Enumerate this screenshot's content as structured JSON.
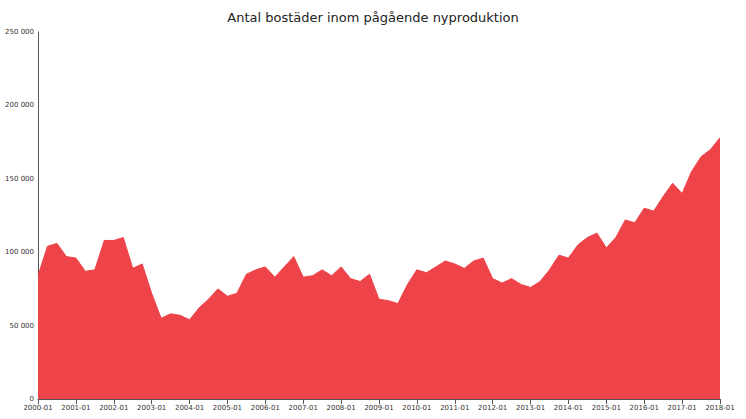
{
  "chart_data": {
    "type": "area",
    "title": "Antal bostäder inom pågående nyproduktion",
    "categories": [
      "2000-01",
      null,
      null,
      null,
      "2001-01",
      null,
      null,
      null,
      "2002-01",
      null,
      null,
      null,
      "2003-01",
      null,
      null,
      null,
      "2004-01",
      null,
      null,
      null,
      "2005-01",
      null,
      null,
      null,
      "2006-01",
      null,
      null,
      null,
      "2007-01",
      null,
      null,
      null,
      "2008-01",
      null,
      null,
      null,
      "2009-01",
      null,
      null,
      null,
      "2010-01",
      null,
      null,
      null,
      "2011-01",
      null,
      null,
      null,
      "2012-01",
      null,
      null,
      null,
      "2013-01",
      null,
      null,
      null,
      "2014-01",
      null,
      null,
      null,
      "2015-01",
      null,
      null,
      null,
      "2016-01",
      null,
      null,
      null,
      "2017-01",
      null,
      null,
      null,
      "2018-01"
    ],
    "values": [
      84000,
      104000,
      106000,
      97000,
      96000,
      87000,
      88000,
      108000,
      108000,
      110000,
      89000,
      92000,
      72000,
      55000,
      58000,
      57000,
      54000,
      62000,
      68000,
      75000,
      70000,
      72000,
      85000,
      88000,
      90000,
      83000,
      90000,
      97000,
      83000,
      84000,
      88000,
      84000,
      90000,
      82000,
      80000,
      85000,
      68000,
      67000,
      65000,
      78000,
      88000,
      86000,
      90000,
      94000,
      92000,
      89000,
      94000,
      96000,
      82000,
      79000,
      82000,
      78000,
      76000,
      80000,
      88000,
      98000,
      96000,
      105000,
      110000,
      113000,
      103000,
      110000,
      122000,
      120000,
      130000,
      128000,
      138000,
      147000,
      140000,
      155000,
      165000,
      170000,
      178000
    ],
    "color": "#ee4449",
    "ylim": [
      0,
      250000
    ],
    "yticks": [
      0,
      {
        "value": 50000,
        "label": "50 000"
      },
      {
        "value": 100000,
        "label": "100 000"
      },
      {
        "value": 150000,
        "label": "150 000"
      },
      {
        "value": 200000,
        "label": "200 000"
      },
      {
        "value": 250000,
        "label": "250 000"
      }
    ],
    "grid": false
  }
}
